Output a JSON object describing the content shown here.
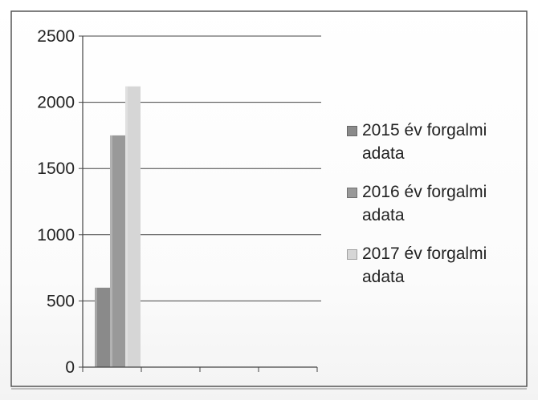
{
  "chart_data": {
    "type": "bar",
    "categories": [
      ""
    ],
    "series": [
      {
        "name": "2015 év forgalmi adata",
        "values": [
          600
        ],
        "color": "#8a8a8a"
      },
      {
        "name": "2016 év forgalmi adata",
        "values": [
          1750
        ],
        "color": "#999999"
      },
      {
        "name": "2017 év forgalmi adata",
        "values": [
          2120
        ],
        "color": "#d6d6d6"
      }
    ],
    "ylim": [
      0,
      2500
    ],
    "yticks": [
      "0",
      "500",
      "1000",
      "1500",
      "2000",
      "2500"
    ],
    "x_category_slots": 4,
    "grid": true,
    "legend_position": "right",
    "title": "",
    "xlabel": "",
    "ylabel": ""
  }
}
